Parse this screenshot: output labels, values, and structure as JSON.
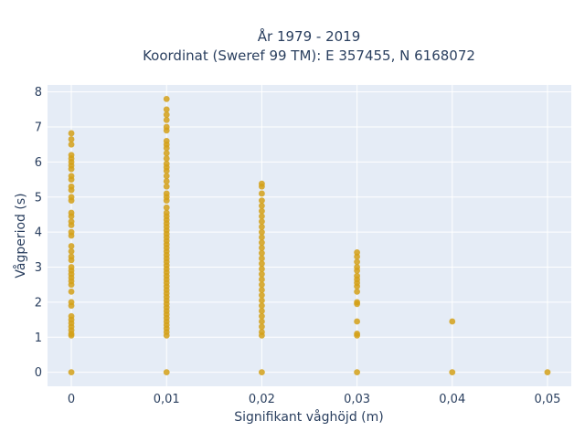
{
  "chart_data": {
    "type": "scatter",
    "title_line1": "År 1979 - 2019",
    "title_line2": "Koordinat (Sweref 99 TM): E 357455, N 6168072",
    "xlabel": "Signifikant våghöjd (m)",
    "ylabel": "Vågperiod (s)",
    "x_tick_values": [
      0,
      0.01,
      0.02,
      0.03,
      0.04,
      0.05
    ],
    "x_tick_labels": [
      "0",
      "0,01",
      "0,02",
      "0,03",
      "0,04",
      "0,05"
    ],
    "y_tick_values": [
      0,
      1,
      2,
      3,
      4,
      5,
      6,
      7,
      8
    ],
    "y_tick_labels": [
      "0",
      "1",
      "2",
      "3",
      "4",
      "5",
      "6",
      "7",
      "8"
    ],
    "xlim": [
      -0.0025,
      0.0525
    ],
    "ylim": [
      -0.4,
      8.2
    ],
    "grid": true,
    "legend": "none",
    "colors": {
      "marker": "#d4a017",
      "plot_bg": "#e5ecf6",
      "grid": "#ffffff",
      "text": "#2a3f5f"
    },
    "series": [
      {
        "marker": "circle",
        "points": [
          [
            0,
            0
          ],
          [
            0,
            1.05
          ],
          [
            0,
            1.1
          ],
          [
            0,
            1.2
          ],
          [
            0,
            1.3
          ],
          [
            0,
            1.4
          ],
          [
            0,
            1.5
          ],
          [
            0,
            1.6
          ],
          [
            0,
            1.9
          ],
          [
            0,
            2.0
          ],
          [
            0,
            2.3
          ],
          [
            0,
            2.5
          ],
          [
            0,
            2.6
          ],
          [
            0,
            2.7
          ],
          [
            0,
            2.8
          ],
          [
            0,
            2.9
          ],
          [
            0,
            3.0
          ],
          [
            0,
            3.2
          ],
          [
            0,
            3.3
          ],
          [
            0,
            3.45
          ],
          [
            0,
            3.6
          ],
          [
            0,
            3.9
          ],
          [
            0,
            4.0
          ],
          [
            0,
            4.2
          ],
          [
            0,
            4.3
          ],
          [
            0,
            4.45
          ],
          [
            0,
            4.55
          ],
          [
            0,
            4.9
          ],
          [
            0,
            5.0
          ],
          [
            0,
            5.2
          ],
          [
            0,
            5.3
          ],
          [
            0,
            5.5
          ],
          [
            0,
            5.6
          ],
          [
            0,
            5.8
          ],
          [
            0,
            5.9
          ],
          [
            0,
            6.0
          ],
          [
            0,
            6.1
          ],
          [
            0,
            6.2
          ],
          [
            0,
            6.5
          ],
          [
            0,
            6.65
          ],
          [
            0,
            6.82
          ],
          [
            0.01,
            0
          ],
          [
            0.01,
            1.05
          ],
          [
            0.01,
            1.15
          ],
          [
            0.01,
            1.25
          ],
          [
            0.01,
            1.35
          ],
          [
            0.01,
            1.45
          ],
          [
            0.01,
            1.55
          ],
          [
            0.01,
            1.65
          ],
          [
            0.01,
            1.75
          ],
          [
            0.01,
            1.85
          ],
          [
            0.01,
            1.95
          ],
          [
            0.01,
            2.05
          ],
          [
            0.01,
            2.15
          ],
          [
            0.01,
            2.25
          ],
          [
            0.01,
            2.35
          ],
          [
            0.01,
            2.45
          ],
          [
            0.01,
            2.55
          ],
          [
            0.01,
            2.65
          ],
          [
            0.01,
            2.75
          ],
          [
            0.01,
            2.85
          ],
          [
            0.01,
            2.95
          ],
          [
            0.01,
            3.05
          ],
          [
            0.01,
            3.15
          ],
          [
            0.01,
            3.25
          ],
          [
            0.01,
            3.35
          ],
          [
            0.01,
            3.45
          ],
          [
            0.01,
            3.55
          ],
          [
            0.01,
            3.65
          ],
          [
            0.01,
            3.75
          ],
          [
            0.01,
            3.85
          ],
          [
            0.01,
            3.95
          ],
          [
            0.01,
            4.05
          ],
          [
            0.01,
            4.15
          ],
          [
            0.01,
            4.25
          ],
          [
            0.01,
            4.35
          ],
          [
            0.01,
            4.45
          ],
          [
            0.01,
            4.55
          ],
          [
            0.01,
            4.7
          ],
          [
            0.01,
            4.9
          ],
          [
            0.01,
            5.0
          ],
          [
            0.01,
            5.1
          ],
          [
            0.01,
            5.3
          ],
          [
            0.01,
            5.45
          ],
          [
            0.01,
            5.6
          ],
          [
            0.01,
            5.75
          ],
          [
            0.01,
            5.85
          ],
          [
            0.01,
            5.95
          ],
          [
            0.01,
            6.1
          ],
          [
            0.01,
            6.25
          ],
          [
            0.01,
            6.4
          ],
          [
            0.01,
            6.5
          ],
          [
            0.01,
            6.6
          ],
          [
            0.01,
            6.9
          ],
          [
            0.01,
            7.0
          ],
          [
            0.01,
            7.2
          ],
          [
            0.01,
            7.35
          ],
          [
            0.01,
            7.5
          ],
          [
            0.01,
            7.8
          ],
          [
            0.02,
            0
          ],
          [
            0.02,
            1.05
          ],
          [
            0.02,
            1.15
          ],
          [
            0.02,
            1.3
          ],
          [
            0.02,
            1.45
          ],
          [
            0.02,
            1.6
          ],
          [
            0.02,
            1.75
          ],
          [
            0.02,
            1.9
          ],
          [
            0.02,
            2.05
          ],
          [
            0.02,
            2.2
          ],
          [
            0.02,
            2.35
          ],
          [
            0.02,
            2.5
          ],
          [
            0.02,
            2.65
          ],
          [
            0.02,
            2.8
          ],
          [
            0.02,
            2.95
          ],
          [
            0.02,
            3.1
          ],
          [
            0.02,
            3.25
          ],
          [
            0.02,
            3.4
          ],
          [
            0.02,
            3.55
          ],
          [
            0.02,
            3.7
          ],
          [
            0.02,
            3.85
          ],
          [
            0.02,
            4.0
          ],
          [
            0.02,
            4.15
          ],
          [
            0.02,
            4.3
          ],
          [
            0.02,
            4.45
          ],
          [
            0.02,
            4.6
          ],
          [
            0.02,
            4.75
          ],
          [
            0.02,
            4.9
          ],
          [
            0.02,
            5.1
          ],
          [
            0.02,
            5.3
          ],
          [
            0.02,
            5.38
          ],
          [
            0.03,
            0
          ],
          [
            0.03,
            1.05
          ],
          [
            0.03,
            1.1
          ],
          [
            0.03,
            1.45
          ],
          [
            0.03,
            1.95
          ],
          [
            0.03,
            2.0
          ],
          [
            0.03,
            2.3
          ],
          [
            0.03,
            2.45
          ],
          [
            0.03,
            2.55
          ],
          [
            0.03,
            2.65
          ],
          [
            0.03,
            2.75
          ],
          [
            0.03,
            2.9
          ],
          [
            0.03,
            3.0
          ],
          [
            0.03,
            3.15
          ],
          [
            0.03,
            3.3
          ],
          [
            0.03,
            3.42
          ],
          [
            0.04,
            0
          ],
          [
            0.04,
            1.45
          ],
          [
            0.05,
            0
          ]
        ]
      }
    ]
  }
}
